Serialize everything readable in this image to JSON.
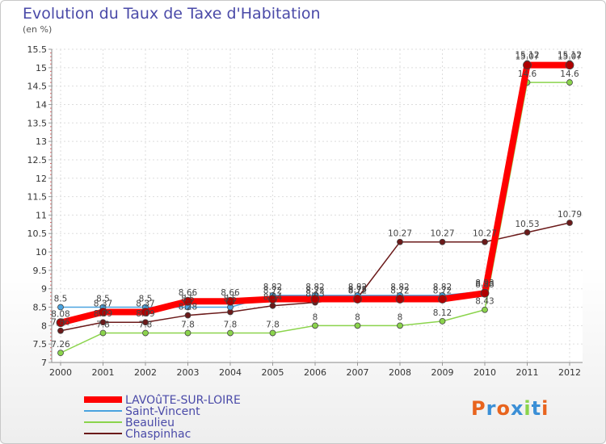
{
  "chart_data": {
    "type": "line",
    "title": "Evolution du Taux de Taxe d'Habitation",
    "unit": "(en %)",
    "x": [
      "2000",
      "2001",
      "2002",
      "2003",
      "2004",
      "2005",
      "2006",
      "2007",
      "2008",
      "2009",
      "2010",
      "2011",
      "2012"
    ],
    "ylim": [
      7,
      15.5
    ],
    "yticks": [
      7,
      7.5,
      8,
      8.5,
      9,
      9.5,
      10,
      10.5,
      11,
      11.5,
      12,
      12.5,
      13,
      13.5,
      14,
      14.5,
      15,
      15.5
    ],
    "legend_position": "bottom-left",
    "series": [
      {
        "name": "LAVOûTE-SUR-LOIRE",
        "color": "#ff0000",
        "values": [
          8.08,
          8.37,
          8.37,
          8.66,
          8.66,
          8.72,
          8.72,
          8.72,
          8.72,
          8.72,
          8.88,
          15.07,
          15.07
        ]
      },
      {
        "name": "Saint-Vincent",
        "color": "#4aa3df",
        "values": [
          8.5,
          8.5,
          8.5,
          8.5,
          8.5,
          8.82,
          8.82,
          8.82,
          8.82,
          8.82,
          8.93,
          15.12,
          15.12
        ]
      },
      {
        "name": "Beaulieu",
        "color": "#8bd44c",
        "values": [
          7.26,
          7.8,
          7.8,
          7.8,
          7.8,
          7.8,
          8,
          8,
          8,
          8.12,
          8.43,
          14.6,
          14.6
        ]
      },
      {
        "name": "Chaspinhac",
        "color": "#6b1a1a",
        "values": [
          7.86,
          8.09,
          8.09,
          8.28,
          8.37,
          8.54,
          8.63,
          8.75,
          10.27,
          10.27,
          10.27,
          10.53,
          10.79
        ]
      }
    ],
    "data_labels": {
      "0": [
        [
          "8.5",
          8.5
        ],
        [
          "8.08",
          8.08
        ],
        [
          "7.86",
          7.86
        ],
        [
          "7.26",
          7.26
        ]
      ],
      "1": [
        [
          "8.5",
          8.5
        ],
        [
          "8.37",
          8.37
        ],
        [
          "8.09",
          8.09
        ],
        [
          "7.8",
          7.8
        ]
      ],
      "2": [
        [
          "8.5",
          8.5
        ],
        [
          "8.37",
          8.37
        ],
        [
          "8.09",
          8.09
        ],
        [
          "7.8",
          7.8
        ]
      ],
      "3": [
        [
          "8.66",
          8.66
        ],
        [
          "8.5",
          8.5
        ],
        [
          "8.28",
          8.28
        ],
        [
          "7.8",
          7.8
        ]
      ],
      "4": [
        [
          "8.66",
          8.66
        ],
        [
          "8.5",
          8.5
        ],
        [
          "7.8",
          7.8
        ]
      ],
      "5": [
        [
          "8.82",
          8.82
        ],
        [
          "8.72",
          8.72
        ],
        [
          "8.54",
          8.54
        ],
        [
          "7.8",
          7.8
        ]
      ],
      "6": [
        [
          "8.82",
          8.82
        ],
        [
          "8.72",
          8.72
        ],
        [
          "8.63",
          8.63
        ],
        [
          "8",
          8
        ]
      ],
      "7": [
        [
          "8.82",
          8.82
        ],
        [
          "8.72",
          8.72
        ],
        [
          "8.75",
          8.75
        ],
        [
          "8",
          8
        ]
      ],
      "8": [
        [
          "10.27",
          10.27
        ],
        [
          "8.82",
          8.82
        ],
        [
          "8.72",
          8.72
        ],
        [
          "8",
          8
        ]
      ],
      "9": [
        [
          "10.27",
          10.27
        ],
        [
          "8.82",
          8.82
        ],
        [
          "8.72",
          8.72
        ],
        [
          "8.12",
          8.12
        ]
      ],
      "10": [
        [
          "10.27",
          10.27
        ],
        [
          "8.93",
          8.93
        ],
        [
          "8.88",
          8.88
        ],
        [
          "8.43",
          8.43
        ]
      ],
      "11": [
        [
          "15.12",
          15.12
        ],
        [
          "15.07",
          15.07
        ],
        [
          "14.6",
          14.6
        ],
        [
          "10.53",
          10.53
        ]
      ],
      "12": [
        [
          "15.12",
          15.12
        ],
        [
          "15.07",
          15.07
        ],
        [
          "14.6",
          14.6
        ],
        [
          "10.79",
          10.79
        ]
      ]
    }
  },
  "logo": {
    "text": "Proxiti",
    "colors": [
      "#e8641e",
      "#3b8fd6",
      "#e8641e",
      "#3b8fd6",
      "#8bd44c",
      "#3b8fd6",
      "#e8641e"
    ]
  }
}
